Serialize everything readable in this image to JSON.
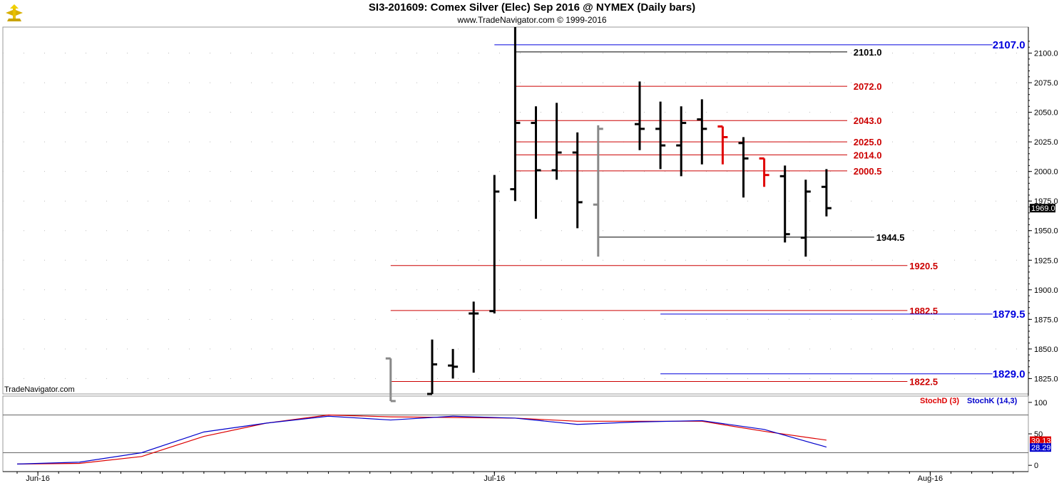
{
  "header": {
    "title": "SI3-201609:  Comex Silver (Elec) Sep 2016 @ NYMEX  (Daily bars)",
    "subtitle": "www.TradeNavigator.com © 1999-2016",
    "watermark": "TradeNavigator.com"
  },
  "chart_data": [
    {
      "type": "bar",
      "subtype": "ohlc",
      "ylim": [
        1812,
        2122
      ],
      "yticks": [
        "2100.0",
        "2075.0",
        "2050.0",
        "2025.0",
        "2000.0",
        "1975.0",
        "1950.0",
        "1925.0",
        "1900.0",
        "1875.0",
        "1850.0",
        "1825.0"
      ],
      "last_price": "1969.0",
      "xticks": [
        {
          "label": "Jun-16",
          "day": 1
        },
        {
          "label": "Jul-16",
          "day": 23
        },
        {
          "label": "Aug-16",
          "day": 44
        }
      ],
      "colors": {
        "up": "#000000",
        "down": "#e00000",
        "neutral": "#888888",
        "resistance": "#cc0000",
        "target": "#0000dd"
      },
      "bars": [
        {
          "day": 18,
          "open": 1842,
          "high": 1842,
          "low": 1806,
          "close": 1806,
          "color": "neutral"
        },
        {
          "day": 20,
          "open": 1812,
          "high": 1858,
          "low": 1812,
          "close": 1837,
          "color": "up"
        },
        {
          "day": 21,
          "open": 1836,
          "high": 1850,
          "low": 1825,
          "close": 1835,
          "color": "up"
        },
        {
          "day": 22,
          "open": 1880,
          "high": 1890,
          "low": 1830,
          "close": 1880,
          "color": "up"
        },
        {
          "day": 23,
          "open": 1882,
          "high": 1997,
          "low": 1880,
          "close": 1983,
          "color": "up"
        },
        {
          "day": 24,
          "open": 1985,
          "high": 2122,
          "low": 1975,
          "close": 2041,
          "color": "up"
        },
        {
          "day": 25,
          "open": 2041,
          "high": 2055,
          "low": 1960,
          "close": 2001,
          "color": "up"
        },
        {
          "day": 26,
          "open": 2001,
          "high": 2058,
          "low": 1993,
          "close": 2016,
          "color": "up"
        },
        {
          "day": 27,
          "open": 2016,
          "high": 2033,
          "low": 1952,
          "close": 1974,
          "color": "up"
        },
        {
          "day": 28,
          "open": 1972,
          "high": 2039,
          "low": 1928,
          "close": 2036,
          "color": "neutral"
        },
        {
          "day": 30,
          "open": 2040,
          "high": 2076,
          "low": 2018,
          "close": 2036,
          "color": "up"
        },
        {
          "day": 31,
          "open": 2036,
          "high": 2059,
          "low": 2002,
          "close": 2022,
          "color": "up"
        },
        {
          "day": 32,
          "open": 2022,
          "high": 2055,
          "low": 1996,
          "close": 2041,
          "color": "up"
        },
        {
          "day": 33,
          "open": 2044,
          "high": 2061,
          "low": 2006,
          "close": 2036,
          "color": "up"
        },
        {
          "day": 34,
          "open": 2038,
          "high": 2038,
          "low": 2006,
          "close": 2029,
          "color": "down"
        },
        {
          "day": 35,
          "open": 2024,
          "high": 2029,
          "low": 1978,
          "close": 2011,
          "color": "up"
        },
        {
          "day": 36,
          "open": 2011,
          "high": 2011,
          "low": 1987,
          "close": 1997,
          "color": "down"
        },
        {
          "day": 37,
          "open": 1996,
          "high": 2005,
          "low": 1940,
          "close": 1947,
          "color": "up"
        },
        {
          "day": 38,
          "open": 1944,
          "high": 1993,
          "low": 1928,
          "close": 1983,
          "color": "up"
        },
        {
          "day": 39,
          "open": 1987,
          "high": 2002,
          "low": 1962,
          "close": 1969,
          "color": "up"
        }
      ],
      "levels": [
        {
          "value": 2107.0,
          "label": "2107.0",
          "color": "target",
          "from_day": 23,
          "to_day": 47,
          "label_day": 47,
          "bold": true
        },
        {
          "value": 2101.0,
          "label": "2101.0",
          "color": "up",
          "from_day": 24,
          "to_day": 40,
          "label_day": 40.3
        },
        {
          "value": 2072.0,
          "label": "2072.0",
          "color": "resistance",
          "from_day": 24,
          "to_day": 40,
          "label_day": 40.3
        },
        {
          "value": 2043.0,
          "label": "2043.0",
          "color": "resistance",
          "from_day": 24,
          "to_day": 40,
          "label_day": 40.3
        },
        {
          "value": 2025.0,
          "label": "2025.0",
          "color": "resistance",
          "from_day": 24,
          "to_day": 40,
          "label_day": 40.3
        },
        {
          "value": 2014.0,
          "label": "2014.0",
          "color": "resistance",
          "from_day": 24,
          "to_day": 40,
          "label_day": 40.3
        },
        {
          "value": 2000.5,
          "label": "2000.5",
          "color": "resistance",
          "from_day": 24,
          "to_day": 40,
          "label_day": 40.3
        },
        {
          "value": 1944.5,
          "label": "1944.5",
          "color": "up",
          "from_day": 28,
          "to_day": 41.3,
          "label_day": 41.4
        },
        {
          "value": 1920.5,
          "label": "1920.5",
          "color": "resistance",
          "from_day": 18,
          "to_day": 42.9,
          "label_day": 43
        },
        {
          "value": 1882.5,
          "label": "1882.5",
          "color": "resistance",
          "from_day": 18,
          "to_day": 42.9,
          "label_day": 43
        },
        {
          "value": 1879.5,
          "label": "1879.5",
          "color": "target",
          "from_day": 31,
          "to_day": 47,
          "label_day": 47,
          "bold": true
        },
        {
          "value": 1822.5,
          "label": "1822.5",
          "color": "resistance",
          "from_day": 18,
          "to_day": 42.9,
          "label_day": 43
        },
        {
          "value": 1829.0,
          "label": "1829.0",
          "color": "target",
          "from_day": 31,
          "to_day": 47,
          "label_day": 47,
          "bold": true
        }
      ]
    },
    {
      "type": "line",
      "ylim": [
        -10,
        110
      ],
      "yticks": [
        "100",
        "50",
        "0"
      ],
      "hlines": [
        80,
        20
      ],
      "series": [
        {
          "name": "StochD (3)",
          "color": "#dd0000",
          "last_value": "39.13",
          "x": [
            0,
            3,
            6,
            9,
            12,
            15,
            18,
            21,
            24,
            27,
            30,
            33,
            36,
            39
          ],
          "values": [
            2,
            3,
            14,
            46,
            67,
            80,
            77,
            76,
            75,
            70,
            70,
            70,
            54,
            40
          ]
        },
        {
          "name": "StochK (14,3)",
          "color": "#0000cc",
          "last_value": "28.29",
          "x": [
            0,
            3,
            6,
            9,
            12,
            15,
            18,
            21,
            24,
            27,
            30,
            33,
            36,
            39
          ],
          "values": [
            2,
            5,
            20,
            53,
            67,
            78,
            72,
            78,
            75,
            65,
            69,
            71,
            57,
            29
          ]
        }
      ]
    }
  ]
}
